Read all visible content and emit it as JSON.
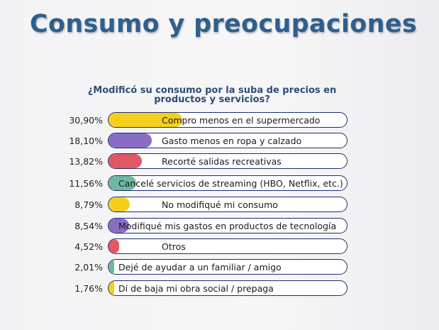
{
  "title": "Consumo y preocupaciones",
  "chart_data": {
    "type": "bar",
    "orientation": "horizontal",
    "title": "¿Modificó su consumo por la suba de precios en productos y servicios?",
    "unit": "%",
    "xlim": [
      0,
      100
    ],
    "categories": [
      "Compro menos en el supermercado",
      "Gasto menos en ropa y calzado",
      "Recorté salidas recreativas",
      "Cancelé servicios de streaming (HBO, Netflix, etc.)",
      "No modifiqué mi consumo",
      "Modifiqué mis gastos en productos de tecnología",
      "Otros",
      "Dejé de ayudar a un familiar / amigo",
      "Di de baja mi obra social / prepaga"
    ],
    "values": [
      30.9,
      18.1,
      13.82,
      11.56,
      8.79,
      8.54,
      4.52,
      2.01,
      1.76
    ],
    "value_labels": [
      "30,90%",
      "18,10%",
      "13,82%",
      "11,56%",
      "8,79%",
      "8,54%",
      "4,52%",
      "2,01%",
      "1,76%"
    ],
    "colors": [
      "#f4d01c",
      "#8a6cc4",
      "#e05766",
      "#6fb7a2",
      "#f4d01c",
      "#8a6cc4",
      "#e05766",
      "#6fb7a2",
      "#f4d01c"
    ]
  }
}
